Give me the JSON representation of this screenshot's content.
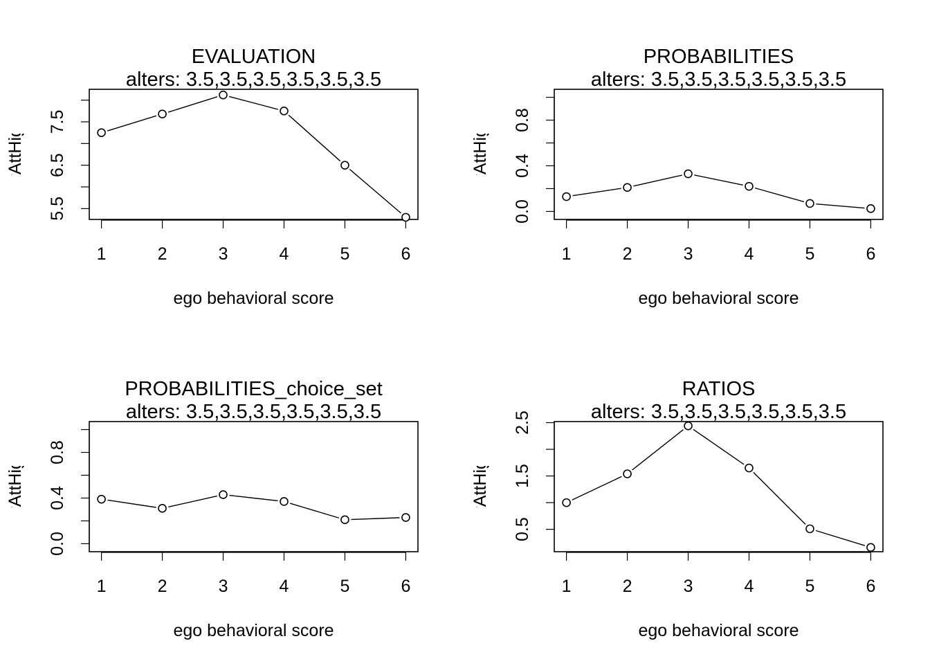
{
  "chart_data": [
    {
      "type": "line",
      "title": "EVALUATION",
      "subtitle": "alters: 3.5,3.5,3.5,3.5,3.5,3.5",
      "xlabel": "ego behavioral score",
      "ylabel": "flinear, fquad, favAttHigher, favAttLower",
      "x": [
        1,
        2,
        3,
        4,
        5,
        6
      ],
      "y": [
        7.25,
        7.68,
        8.12,
        7.75,
        6.5,
        5.3
      ],
      "xticks": [
        "1",
        "2",
        "3",
        "4",
        "5",
        "6"
      ],
      "yticks": [
        "5.5",
        "6.5",
        "7.5"
      ],
      "yminor": [
        5.5,
        6.0,
        6.5,
        7.0,
        7.5,
        8.0
      ],
      "ylim": [
        5.25,
        8.25
      ],
      "grid": false
    },
    {
      "type": "line",
      "title": "PROBABILITIES",
      "subtitle": "alters: 3.5,3.5,3.5,3.5,3.5,3.5",
      "xlabel": "ego behavioral score",
      "ylabel": "flinear, fquad, favAttHigher, favAttLower",
      "x": [
        1,
        2,
        3,
        4,
        5,
        6
      ],
      "y": [
        0.13,
        0.21,
        0.33,
        0.22,
        0.07,
        0.025
      ],
      "xticks": [
        "1",
        "2",
        "3",
        "4",
        "5",
        "6"
      ],
      "yticks": [
        "0.0",
        "0.4",
        "0.8"
      ],
      "yminor": [
        0.0,
        0.2,
        0.4,
        0.6,
        0.8,
        1.0
      ],
      "ylim": [
        -0.07,
        1.07
      ],
      "grid": false
    },
    {
      "type": "line",
      "title": "PROBABILITIES_choice_set",
      "subtitle": "alters: 3.5,3.5,3.5,3.5,3.5,3.5",
      "xlabel": "ego behavioral score",
      "ylabel": "flinear, fquad, favAttHigher, favAttLower",
      "x": [
        1,
        2,
        3,
        4,
        5,
        6
      ],
      "y": [
        0.39,
        0.31,
        0.43,
        0.37,
        0.21,
        0.23
      ],
      "xticks": [
        "1",
        "2",
        "3",
        "4",
        "5",
        "6"
      ],
      "yticks": [
        "0.0",
        "0.4",
        "0.8"
      ],
      "yminor": [
        0.0,
        0.2,
        0.4,
        0.6,
        0.8,
        1.0
      ],
      "ylim": [
        -0.07,
        1.07
      ],
      "grid": false
    },
    {
      "type": "line",
      "title": "RATIOS",
      "subtitle": "alters: 3.5,3.5,3.5,3.5,3.5,3.5",
      "xlabel": "ego behavioral score",
      "ylabel": "flinear, fquad, favAttHigher, favAttLower",
      "x": [
        1,
        2,
        3,
        4,
        5,
        6
      ],
      "y": [
        1.0,
        1.54,
        2.44,
        1.65,
        0.51,
        0.16
      ],
      "xticks": [
        "1",
        "2",
        "3",
        "4",
        "5",
        "6"
      ],
      "yticks": [
        "0.5",
        "1.5",
        "2.5"
      ],
      "yminor": [
        0.5,
        1.0,
        1.5,
        2.0,
        2.5
      ],
      "ylim": [
        0.08,
        2.52
      ],
      "grid": false
    }
  ]
}
